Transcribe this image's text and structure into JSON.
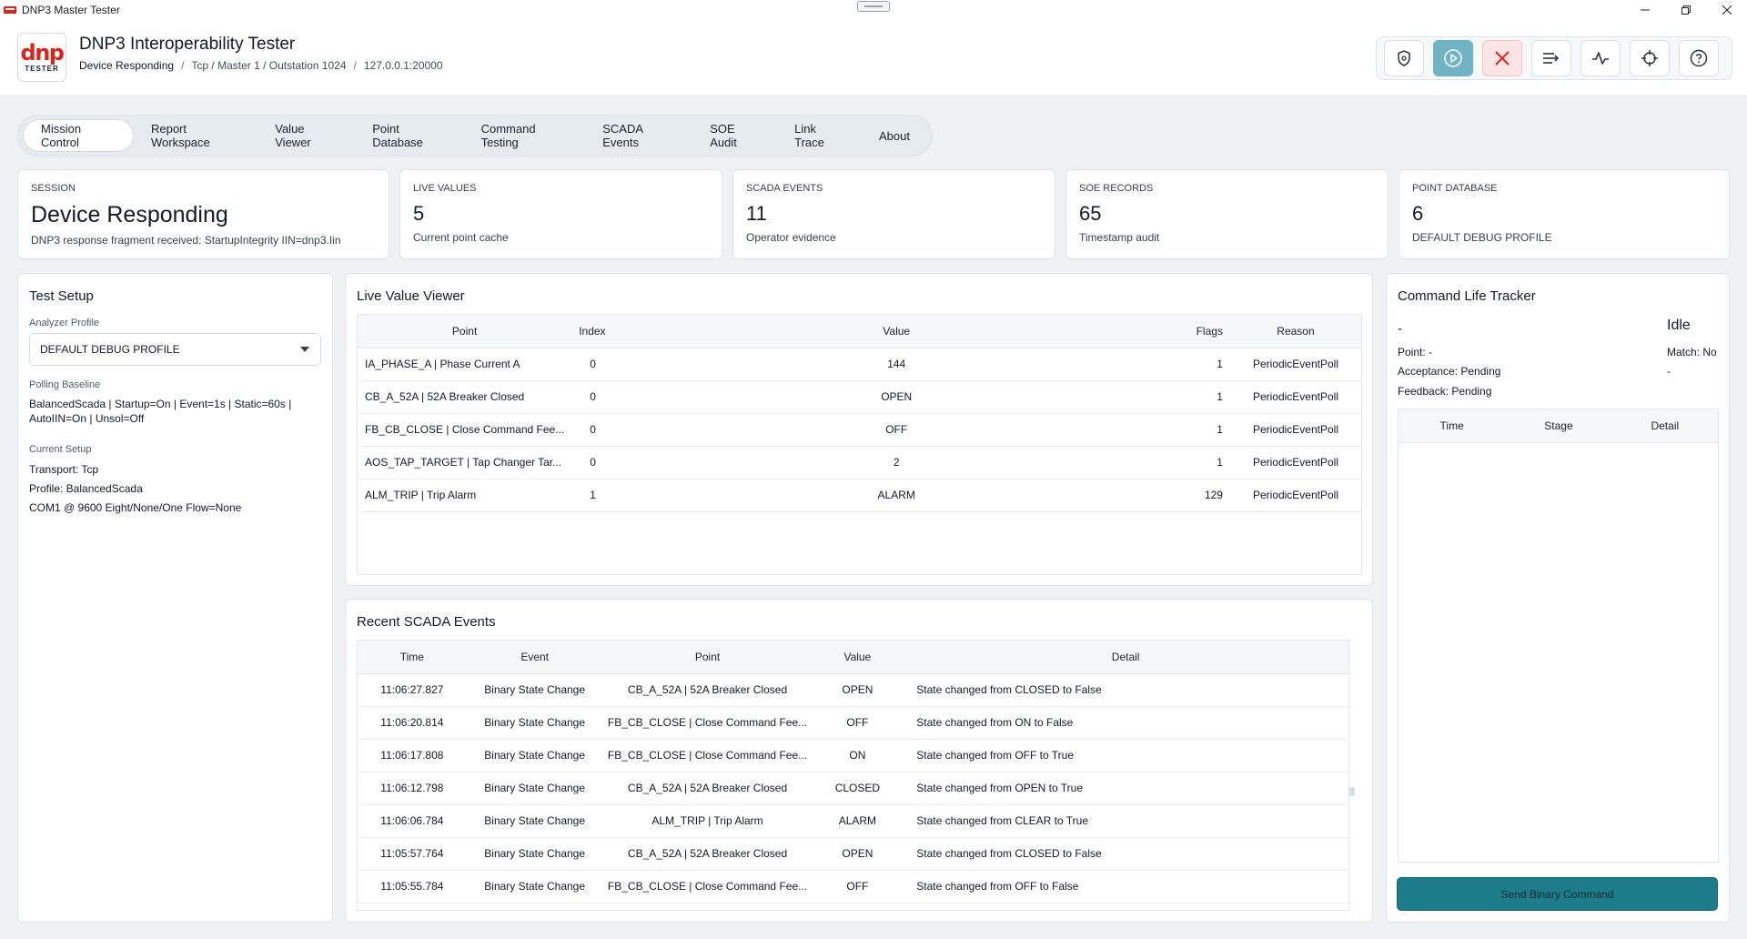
{
  "window": {
    "title": "DNP3 Master Tester"
  },
  "header": {
    "logo_mark": "dnp",
    "logo_sub": "TESTER",
    "app_name": "DNP3 Interoperability Tester",
    "breadcrumb": [
      "Device Responding",
      "Tcp / Master 1 / Outstation 1024",
      "127.0.0.1:20000"
    ],
    "toolbar_icons": [
      "shield-icon",
      "play-icon",
      "close-icon",
      "list-icon",
      "pulse-icon",
      "crosshair-icon",
      "help-icon"
    ]
  },
  "tabs": [
    {
      "label": "Mission Control",
      "active": true
    },
    {
      "label": "Report Workspace"
    },
    {
      "label": "Value Viewer"
    },
    {
      "label": "Point Database"
    },
    {
      "label": "Command Testing"
    },
    {
      "label": "SCADA Events"
    },
    {
      "label": "SOE Audit"
    },
    {
      "label": "Link Trace"
    },
    {
      "label": "About"
    }
  ],
  "stats": {
    "session": {
      "label": "SESSION",
      "value": "Device Responding",
      "sub": "DNP3 response fragment received: StartupIntegrity IIN=dnp3.Iin"
    },
    "live_values": {
      "label": "LIVE VALUES",
      "value": "5",
      "sub": "Current point cache"
    },
    "scada_events": {
      "label": "SCADA EVENTS",
      "value": "11",
      "sub": "Operator evidence"
    },
    "soe_records": {
      "label": "SOE RECORDS",
      "value": "65",
      "sub": "Timestamp audit"
    },
    "point_database": {
      "label": "POINT DATABASE",
      "value": "6",
      "sub": "DEFAULT DEBUG PROFILE"
    }
  },
  "test_setup": {
    "title": "Test Setup",
    "analyzer_label": "Analyzer Profile",
    "analyzer_value": "DEFAULT DEBUG PROFILE",
    "polling_label": "Polling Baseline",
    "polling_line1": "BalancedScada | Startup=On | Event=1s | Static=60s |",
    "polling_line2": "AutoIIN=On | Unsol=Off",
    "current_label": "Current Setup",
    "current_lines": [
      "Transport: Tcp",
      "Profile: BalancedScada",
      "COM1 @ 9600 Eight/None/One Flow=None"
    ]
  },
  "live_viewer": {
    "title": "Live Value Viewer",
    "columns": [
      "Point",
      "Index",
      "Value",
      "Flags",
      "Reason"
    ],
    "rows": [
      [
        "IA_PHASE_A | Phase Current A",
        "0",
        "144",
        "1",
        "PeriodicEventPoll"
      ],
      [
        "CB_A_52A | 52A Breaker Closed",
        "0",
        "OPEN",
        "1",
        "PeriodicEventPoll"
      ],
      [
        "FB_CB_CLOSE | Close Command Fee...",
        "0",
        "OFF",
        "1",
        "PeriodicEventPoll"
      ],
      [
        "AOS_TAP_TARGET | Tap Changer Tar...",
        "0",
        "2",
        "1",
        "PeriodicEventPoll"
      ],
      [
        "ALM_TRIP | Trip Alarm",
        "1",
        "ALARM",
        "129",
        "PeriodicEventPoll"
      ]
    ]
  },
  "scada_events": {
    "title": "Recent SCADA Events",
    "columns": [
      "Time",
      "Event",
      "Point",
      "Value",
      "Detail"
    ],
    "rows": [
      [
        "11:06:27.827",
        "Binary State Change",
        "CB_A_52A | 52A Breaker Closed",
        "OPEN",
        "State changed from CLOSED to False"
      ],
      [
        "11:06:20.814",
        "Binary State Change",
        "FB_CB_CLOSE | Close Command Fee...",
        "OFF",
        "State changed from ON to False"
      ],
      [
        "11:06:17.808",
        "Binary State Change",
        "FB_CB_CLOSE | Close Command Fee...",
        "ON",
        "State changed from OFF to True"
      ],
      [
        "11:06:12.798",
        "Binary State Change",
        "CB_A_52A | 52A Breaker Closed",
        "CLOSED",
        "State changed from OPEN to True"
      ],
      [
        "11:06:06.784",
        "Binary State Change",
        "ALM_TRIP | Trip Alarm",
        "ALARM",
        "State changed from CLEAR to True"
      ],
      [
        "11:05:57.764",
        "Binary State Change",
        "CB_A_52A | 52A Breaker Closed",
        "OPEN",
        "State changed from CLOSED to False"
      ],
      [
        "11:05:55.784",
        "Binary State Change",
        "FB_CB_CLOSE | Close Command Fee...",
        "OFF",
        "State changed from OFF to False"
      ]
    ]
  },
  "command_tracker": {
    "title": "Command Life Tracker",
    "name": "-",
    "state": "Idle",
    "point": "Point: -",
    "match": "Match: No",
    "acceptance": "Acceptance: Pending",
    "acceptance_right": "-",
    "feedback": "Feedback: Pending",
    "columns": [
      "Time",
      "Stage",
      "Detail"
    ],
    "button": "Send Binary Command"
  }
}
